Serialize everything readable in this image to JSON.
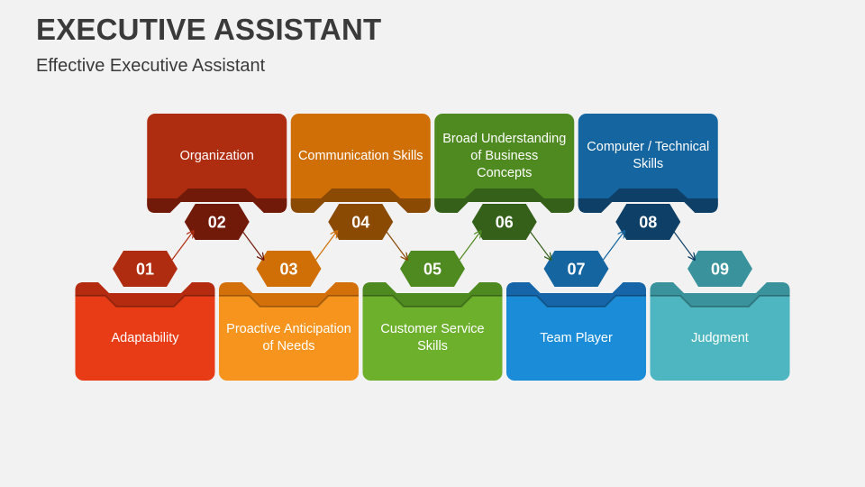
{
  "title": "EXECUTIVE ASSISTANT",
  "subtitle": "Effective Executive Assistant",
  "steps": [
    {
      "number": "01",
      "label": "Adaptability",
      "position": "bottom",
      "color": "#E83C17",
      "strip": "#B52B10",
      "hex": "#B02C10"
    },
    {
      "number": "02",
      "label": "Organization",
      "position": "top",
      "color": "#AE2C10",
      "strip": "#721A0A",
      "hex": "#721A0A"
    },
    {
      "number": "03",
      "label": "Proactive Anticipation of Needs",
      "position": "bottom",
      "color": "#F7941D",
      "strip": "#D4700A",
      "hex": "#D06F06"
    },
    {
      "number": "04",
      "label": "Communication Skills",
      "position": "top",
      "color": "#D06F06",
      "strip": "#8A4A04",
      "hex": "#8A4A04"
    },
    {
      "number": "05",
      "label": "Customer Service Skills",
      "position": "bottom",
      "color": "#6DB02C",
      "strip": "#4E8A1F",
      "hex": "#4E8A1F"
    },
    {
      "number": "06",
      "label": "Broad Understanding of Business Concepts",
      "position": "top",
      "color": "#4E8A1F",
      "strip": "#35601A",
      "hex": "#35601A"
    },
    {
      "number": "07",
      "label": "Team Player",
      "position": "bottom",
      "color": "#1B8DD8",
      "strip": "#1565A8",
      "hex": "#1565A0"
    },
    {
      "number": "08",
      "label": "Computer / Technical Skills",
      "position": "top",
      "color": "#1565A0",
      "strip": "#0E3F66",
      "hex": "#0E3F66"
    },
    {
      "number": "09",
      "label": "Judgment",
      "position": "bottom",
      "color": "#4DB6C0",
      "strip": "#3A939C",
      "hex": "#3A939C"
    }
  ]
}
